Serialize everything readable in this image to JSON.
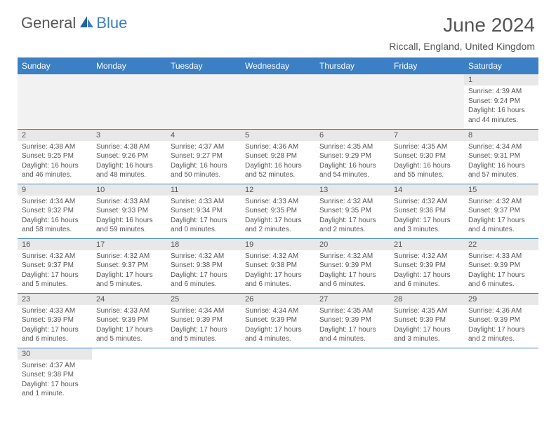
{
  "logo": {
    "text1": "General",
    "text2": "Blue"
  },
  "title": "June 2024",
  "location": "Riccall, England, United Kingdom",
  "colors": {
    "accent": "#3b7fc4",
    "text": "#555555",
    "day_header_bg": "#e8e8e8",
    "empty_bg": "#f2f2f2"
  },
  "day_headers": [
    "Sunday",
    "Monday",
    "Tuesday",
    "Wednesday",
    "Thursday",
    "Friday",
    "Saturday"
  ],
  "weeks": [
    [
      null,
      null,
      null,
      null,
      null,
      null,
      {
        "n": "1",
        "sr": "Sunrise: 4:39 AM",
        "ss": "Sunset: 9:24 PM",
        "dl": "Daylight: 16 hours and 44 minutes."
      }
    ],
    [
      {
        "n": "2",
        "sr": "Sunrise: 4:38 AM",
        "ss": "Sunset: 9:25 PM",
        "dl": "Daylight: 16 hours and 46 minutes."
      },
      {
        "n": "3",
        "sr": "Sunrise: 4:38 AM",
        "ss": "Sunset: 9:26 PM",
        "dl": "Daylight: 16 hours and 48 minutes."
      },
      {
        "n": "4",
        "sr": "Sunrise: 4:37 AM",
        "ss": "Sunset: 9:27 PM",
        "dl": "Daylight: 16 hours and 50 minutes."
      },
      {
        "n": "5",
        "sr": "Sunrise: 4:36 AM",
        "ss": "Sunset: 9:28 PM",
        "dl": "Daylight: 16 hours and 52 minutes."
      },
      {
        "n": "6",
        "sr": "Sunrise: 4:35 AM",
        "ss": "Sunset: 9:29 PM",
        "dl": "Daylight: 16 hours and 54 minutes."
      },
      {
        "n": "7",
        "sr": "Sunrise: 4:35 AM",
        "ss": "Sunset: 9:30 PM",
        "dl": "Daylight: 16 hours and 55 minutes."
      },
      {
        "n": "8",
        "sr": "Sunrise: 4:34 AM",
        "ss": "Sunset: 9:31 PM",
        "dl": "Daylight: 16 hours and 57 minutes."
      }
    ],
    [
      {
        "n": "9",
        "sr": "Sunrise: 4:34 AM",
        "ss": "Sunset: 9:32 PM",
        "dl": "Daylight: 16 hours and 58 minutes."
      },
      {
        "n": "10",
        "sr": "Sunrise: 4:33 AM",
        "ss": "Sunset: 9:33 PM",
        "dl": "Daylight: 16 hours and 59 minutes."
      },
      {
        "n": "11",
        "sr": "Sunrise: 4:33 AM",
        "ss": "Sunset: 9:34 PM",
        "dl": "Daylight: 17 hours and 0 minutes."
      },
      {
        "n": "12",
        "sr": "Sunrise: 4:33 AM",
        "ss": "Sunset: 9:35 PM",
        "dl": "Daylight: 17 hours and 2 minutes."
      },
      {
        "n": "13",
        "sr": "Sunrise: 4:32 AM",
        "ss": "Sunset: 9:35 PM",
        "dl": "Daylight: 17 hours and 2 minutes."
      },
      {
        "n": "14",
        "sr": "Sunrise: 4:32 AM",
        "ss": "Sunset: 9:36 PM",
        "dl": "Daylight: 17 hours and 3 minutes."
      },
      {
        "n": "15",
        "sr": "Sunrise: 4:32 AM",
        "ss": "Sunset: 9:37 PM",
        "dl": "Daylight: 17 hours and 4 minutes."
      }
    ],
    [
      {
        "n": "16",
        "sr": "Sunrise: 4:32 AM",
        "ss": "Sunset: 9:37 PM",
        "dl": "Daylight: 17 hours and 5 minutes."
      },
      {
        "n": "17",
        "sr": "Sunrise: 4:32 AM",
        "ss": "Sunset: 9:37 PM",
        "dl": "Daylight: 17 hours and 5 minutes."
      },
      {
        "n": "18",
        "sr": "Sunrise: 4:32 AM",
        "ss": "Sunset: 9:38 PM",
        "dl": "Daylight: 17 hours and 6 minutes."
      },
      {
        "n": "19",
        "sr": "Sunrise: 4:32 AM",
        "ss": "Sunset: 9:38 PM",
        "dl": "Daylight: 17 hours and 6 minutes."
      },
      {
        "n": "20",
        "sr": "Sunrise: 4:32 AM",
        "ss": "Sunset: 9:39 PM",
        "dl": "Daylight: 17 hours and 6 minutes."
      },
      {
        "n": "21",
        "sr": "Sunrise: 4:32 AM",
        "ss": "Sunset: 9:39 PM",
        "dl": "Daylight: 17 hours and 6 minutes."
      },
      {
        "n": "22",
        "sr": "Sunrise: 4:33 AM",
        "ss": "Sunset: 9:39 PM",
        "dl": "Daylight: 17 hours and 6 minutes."
      }
    ],
    [
      {
        "n": "23",
        "sr": "Sunrise: 4:33 AM",
        "ss": "Sunset: 9:39 PM",
        "dl": "Daylight: 17 hours and 6 minutes."
      },
      {
        "n": "24",
        "sr": "Sunrise: 4:33 AM",
        "ss": "Sunset: 9:39 PM",
        "dl": "Daylight: 17 hours and 5 minutes."
      },
      {
        "n": "25",
        "sr": "Sunrise: 4:34 AM",
        "ss": "Sunset: 9:39 PM",
        "dl": "Daylight: 17 hours and 5 minutes."
      },
      {
        "n": "26",
        "sr": "Sunrise: 4:34 AM",
        "ss": "Sunset: 9:39 PM",
        "dl": "Daylight: 17 hours and 4 minutes."
      },
      {
        "n": "27",
        "sr": "Sunrise: 4:35 AM",
        "ss": "Sunset: 9:39 PM",
        "dl": "Daylight: 17 hours and 4 minutes."
      },
      {
        "n": "28",
        "sr": "Sunrise: 4:35 AM",
        "ss": "Sunset: 9:39 PM",
        "dl": "Daylight: 17 hours and 3 minutes."
      },
      {
        "n": "29",
        "sr": "Sunrise: 4:36 AM",
        "ss": "Sunset: 9:39 PM",
        "dl": "Daylight: 17 hours and 2 minutes."
      }
    ],
    [
      {
        "n": "30",
        "sr": "Sunrise: 4:37 AM",
        "ss": "Sunset: 9:38 PM",
        "dl": "Daylight: 17 hours and 1 minute."
      },
      null,
      null,
      null,
      null,
      null,
      null
    ]
  ]
}
